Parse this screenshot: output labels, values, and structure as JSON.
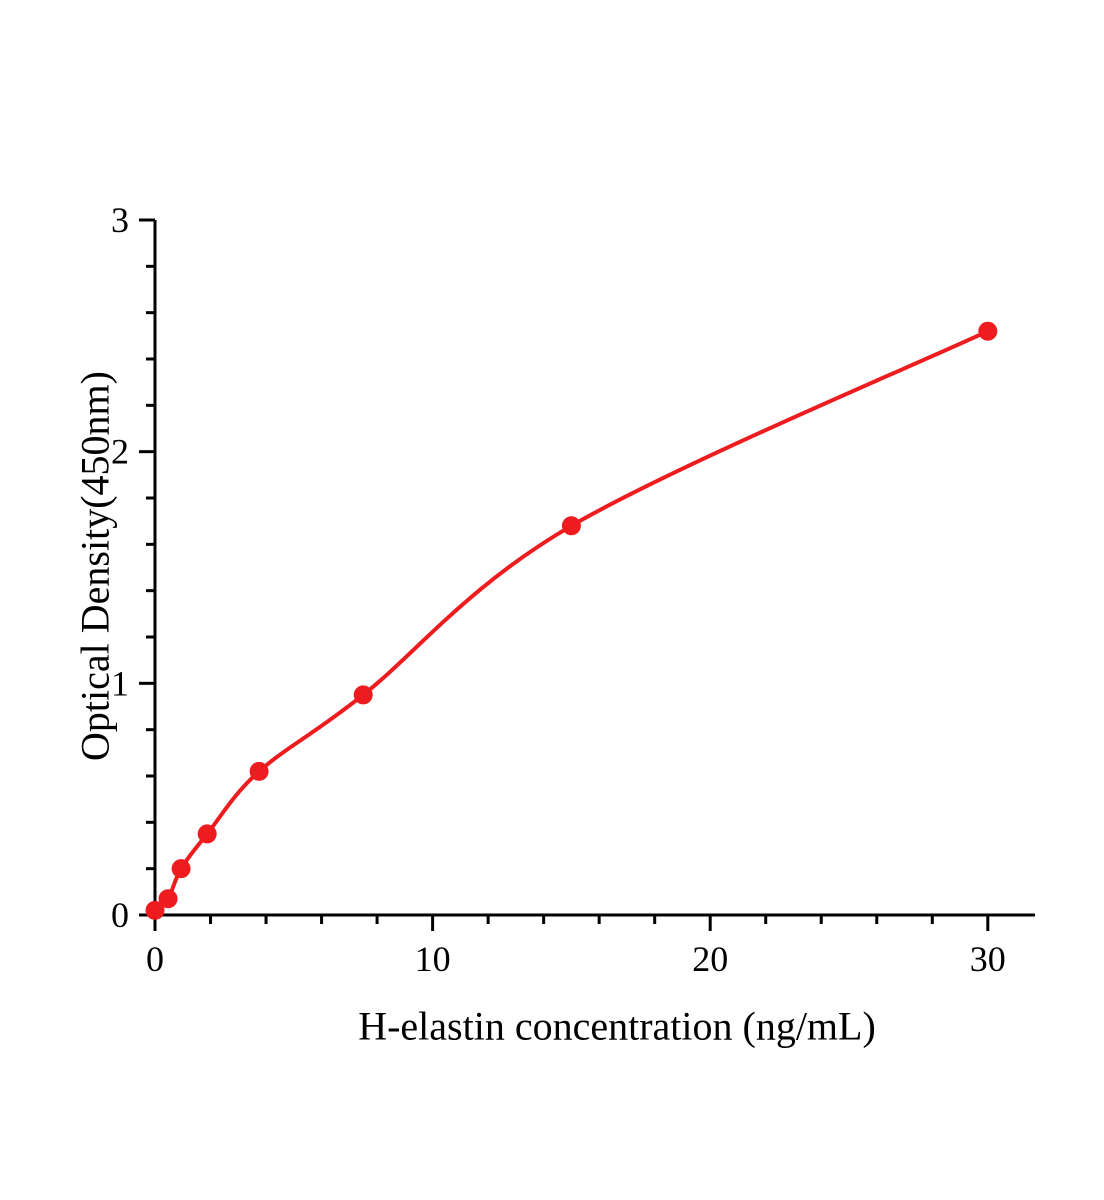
{
  "chart_data": {
    "type": "scatter",
    "title": "",
    "xlabel": "H-elastin concentration (ng/mL)",
    "ylabel": "Optical Density(450nm)",
    "x": [
      0,
      0.47,
      0.94,
      1.88,
      3.75,
      7.5,
      15,
      30
    ],
    "y": [
      0.02,
      0.07,
      0.2,
      0.35,
      0.62,
      0.95,
      1.68,
      2.52
    ],
    "curve": "smooth saturating fit through points",
    "xlim": [
      0,
      31.7
    ],
    "ylim": [
      0,
      3
    ],
    "x_major_ticks": [
      0,
      10,
      20,
      30
    ],
    "x_minor_step": 2,
    "y_major_ticks": [
      0,
      1,
      2,
      3
    ],
    "y_minor_step": 0.2,
    "point_color": "#ee1c1e",
    "line_color": "#ee1c1e",
    "axis_color": "#000000",
    "background": "#ffffff",
    "grid": false,
    "legend": null
  }
}
